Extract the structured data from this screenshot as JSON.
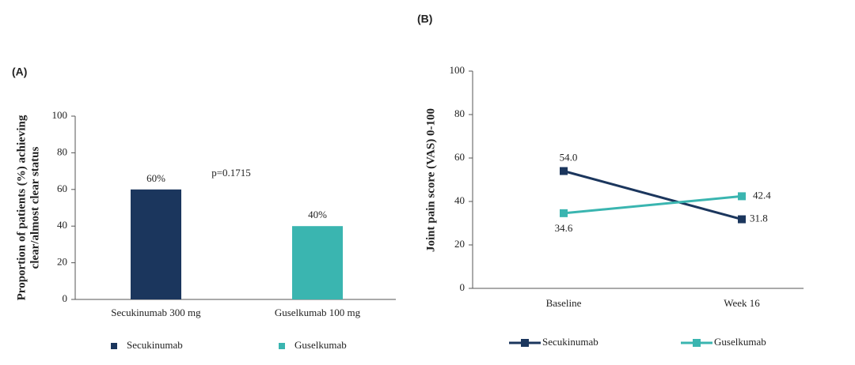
{
  "chart_data": [
    {
      "type": "bar",
      "panel": "(A)",
      "y_label": [
        "Proportion of patients (%) achieving",
        "clear/almost clear status"
      ],
      "categories": [
        "Secukinumab 300 mg",
        "Guselkumab 100 mg"
      ],
      "series": [
        {
          "name": "Secukinumab",
          "color": "#1b365d",
          "values": [
            60,
            null
          ],
          "value_labels": [
            "60%",
            null
          ]
        },
        {
          "name": "Guselkumab",
          "color": "#3ab5b0",
          "values": [
            null,
            40
          ],
          "value_labels": [
            null,
            "40%"
          ]
        }
      ],
      "annotation": "p=0.1715",
      "ylim": [
        0,
        100
      ],
      "yticks": [
        0,
        20,
        40,
        60,
        80,
        100
      ]
    },
    {
      "type": "line",
      "panel": "(B)",
      "y_label": [
        "Joint pain score (VAS) 0-100"
      ],
      "categories": [
        "Baseline",
        "Week 16"
      ],
      "series": [
        {
          "name": "Secukinumab",
          "color": "#1b365d",
          "values": [
            54.0,
            31.8
          ],
          "value_labels": [
            "54.0",
            "31.8"
          ]
        },
        {
          "name": "Guselkumab",
          "color": "#3ab5b0",
          "values": [
            34.6,
            42.4
          ],
          "value_labels": [
            "34.6",
            "42.4"
          ]
        }
      ],
      "ylim": [
        0,
        100
      ],
      "yticks": [
        0,
        20,
        40,
        60,
        80,
        100
      ]
    }
  ]
}
